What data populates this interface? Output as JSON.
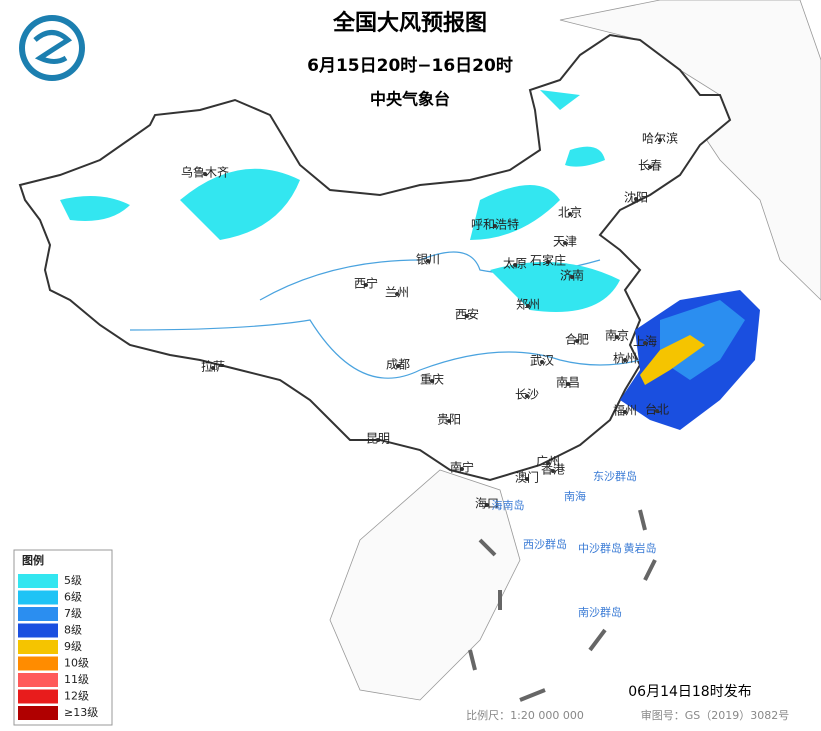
{
  "header": {
    "title": "全国大风预报图",
    "period": "6月15日20时−16日20时",
    "issuer": "中央气象台"
  },
  "cities": [
    "乌鲁木齐",
    "哈尔滨",
    "长春",
    "沈阳",
    "呼和浩特",
    "北京",
    "天津",
    "石家庄",
    "太原",
    "济南",
    "银川",
    "西宁",
    "兰州",
    "郑州",
    "西安",
    "南京",
    "合肥",
    "上海",
    "杭州",
    "武汉",
    "成都",
    "重庆",
    "拉萨",
    "南昌",
    "长沙",
    "贵阳",
    "福州",
    "台北",
    "昆明",
    "南宁",
    "广州",
    "澳门",
    "香港",
    "海口"
  ],
  "seas": [
    "南海",
    "东沙群岛",
    "西沙群岛",
    "中沙群岛",
    "黄岩岛",
    "南沙群岛",
    "海南岛"
  ],
  "legend": {
    "title": "图例",
    "items": [
      "5级",
      "6级",
      "7级",
      "8级",
      "9级",
      "10级",
      "11级",
      "12级",
      "≥13级"
    ]
  },
  "footer": {
    "issued": "06月14日18时发布",
    "scale": "比例尺：1:20 000 000",
    "approval": "审图号：GS（2019）3082号"
  }
}
